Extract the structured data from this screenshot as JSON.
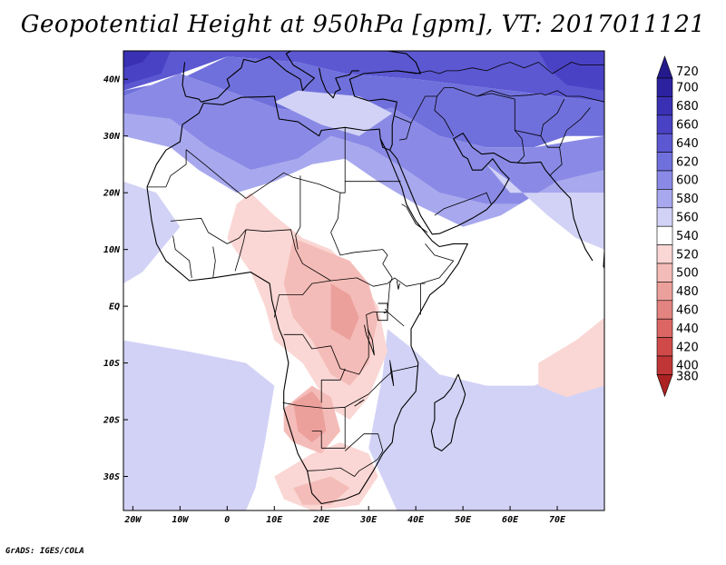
{
  "title": "Geopotential Height at 950hPa [gpm], VT: 2017011121",
  "footer": "GrADS: IGES/COLA",
  "map": {
    "lon_range": [
      -22,
      80
    ],
    "lat_range": [
      -36,
      45
    ],
    "x_ticks": [
      {
        "value": -20,
        "label": "20W"
      },
      {
        "value": -10,
        "label": "10W"
      },
      {
        "value": 0,
        "label": "0"
      },
      {
        "value": 10,
        "label": "10E"
      },
      {
        "value": 20,
        "label": "20E"
      },
      {
        "value": 30,
        "label": "30E"
      },
      {
        "value": 40,
        "label": "40E"
      },
      {
        "value": 50,
        "label": "50E"
      },
      {
        "value": 60,
        "label": "60E"
      },
      {
        "value": 70,
        "label": "70E"
      }
    ],
    "y_ticks": [
      {
        "value": 40,
        "label": "40N"
      },
      {
        "value": 30,
        "label": "30N"
      },
      {
        "value": 20,
        "label": "20N"
      },
      {
        "value": 10,
        "label": "10N"
      },
      {
        "value": 0,
        "label": "EQ"
      },
      {
        "value": -10,
        "label": "10S"
      },
      {
        "value": -20,
        "label": "20S"
      },
      {
        "value": -30,
        "label": "30S"
      }
    ]
  },
  "colorbar": {
    "levels": [
      {
        "label": "720",
        "color": "#241a8c"
      },
      {
        "label": "700",
        "color": "#2c22a0"
      },
      {
        "label": "680",
        "color": "#3a30b4"
      },
      {
        "label": "660",
        "color": "#4a42c4"
      },
      {
        "label": "640",
        "color": "#5c58d2"
      },
      {
        "label": "620",
        "color": "#7070dc"
      },
      {
        "label": "600",
        "color": "#8a8ae6"
      },
      {
        "label": "580",
        "color": "#a8a8ee"
      },
      {
        "label": "560",
        "color": "#d2d2f6"
      },
      {
        "label": "540",
        "color": "#ffffff"
      },
      {
        "label": "520",
        "color": "#fad7d4"
      },
      {
        "label": "500",
        "color": "#f4bcb8"
      },
      {
        "label": "480",
        "color": "#eca09c"
      },
      {
        "label": "460",
        "color": "#e48480"
      },
      {
        "label": "440",
        "color": "#dc6664"
      },
      {
        "label": "420",
        "color": "#d04a4a"
      },
      {
        "label": "400",
        "color": "#c03636"
      },
      {
        "label": "380",
        "color": "#ac2222"
      }
    ]
  },
  "field_regions": [
    {
      "level": "640",
      "polys": [
        [
          [
            -22,
            45
          ],
          [
            80,
            45
          ],
          [
            80,
            36
          ],
          [
            60,
            38
          ],
          [
            40,
            40
          ],
          [
            25,
            41
          ],
          [
            15,
            43
          ],
          [
            0,
            44
          ],
          [
            -10,
            41
          ],
          [
            -22,
            38
          ]
        ]
      ]
    },
    {
      "level": "660",
      "polys": [
        [
          [
            -22,
            45
          ],
          [
            -12,
            45
          ],
          [
            -14,
            41
          ],
          [
            -22,
            39
          ]
        ],
        [
          [
            66,
            45
          ],
          [
            80,
            45
          ],
          [
            80,
            38
          ],
          [
            72,
            39
          ],
          [
            68,
            42
          ]
        ]
      ]
    },
    {
      "level": "680",
      "polys": [
        [
          [
            -22,
            45
          ],
          [
            -16,
            45
          ],
          [
            -18,
            43
          ],
          [
            -22,
            42
          ]
        ]
      ]
    },
    {
      "level": "620",
      "polys": [
        [
          [
            -22,
            37
          ],
          [
            -10,
            41
          ],
          [
            0,
            38
          ],
          [
            10,
            35
          ],
          [
            25,
            33
          ],
          [
            35,
            35
          ],
          [
            45,
            30
          ],
          [
            55,
            28
          ],
          [
            65,
            28
          ],
          [
            72,
            30
          ],
          [
            80,
            30
          ],
          [
            80,
            36
          ],
          [
            60,
            38
          ],
          [
            40,
            40
          ],
          [
            25,
            41
          ],
          [
            15,
            43
          ],
          [
            0,
            44
          ],
          [
            -10,
            40
          ],
          [
            -22,
            38
          ]
        ],
        [
          [
            -22,
            -24
          ],
          [
            -10,
            -26
          ],
          [
            -5,
            -31
          ],
          [
            -12,
            -36
          ],
          [
            -22,
            -36
          ]
        ],
        [
          [
            50,
            -26
          ],
          [
            60,
            -26
          ],
          [
            68,
            -30
          ],
          [
            64,
            -36
          ],
          [
            50,
            -36
          ],
          [
            45,
            -31
          ]
        ]
      ]
    },
    {
      "level": "600",
      "polys": [
        [
          [
            -22,
            34
          ],
          [
            -12,
            33
          ],
          [
            -4,
            28
          ],
          [
            5,
            24
          ],
          [
            15,
            26
          ],
          [
            22,
            30
          ],
          [
            30,
            28
          ],
          [
            38,
            24
          ],
          [
            45,
            20
          ],
          [
            55,
            18
          ],
          [
            62,
            18
          ],
          [
            70,
            22
          ],
          [
            80,
            24
          ],
          [
            80,
            30
          ],
          [
            65,
            28
          ],
          [
            55,
            28
          ],
          [
            45,
            30
          ],
          [
            35,
            35
          ],
          [
            25,
            33
          ],
          [
            10,
            35
          ],
          [
            0,
            38
          ],
          [
            -10,
            41
          ],
          [
            -22,
            37
          ]
        ],
        [
          [
            -22,
            -20
          ],
          [
            -5,
            -22
          ],
          [
            2,
            -27
          ],
          [
            -4,
            -36
          ],
          [
            -22,
            -36
          ]
        ],
        [
          [
            45,
            -22
          ],
          [
            62,
            -22
          ],
          [
            72,
            -27
          ],
          [
            70,
            -36
          ],
          [
            40,
            -36
          ],
          [
            38,
            -30
          ]
        ]
      ]
    },
    {
      "level": "580",
      "polys": [
        [
          [
            -22,
            30
          ],
          [
            -12,
            28
          ],
          [
            -6,
            24
          ],
          [
            2,
            20
          ],
          [
            10,
            22
          ],
          [
            18,
            25
          ],
          [
            25,
            26
          ],
          [
            32,
            22
          ],
          [
            40,
            18
          ],
          [
            50,
            14
          ],
          [
            58,
            16
          ],
          [
            66,
            20
          ],
          [
            74,
            20
          ],
          [
            80,
            20
          ],
          [
            80,
            24
          ],
          [
            70,
            22
          ],
          [
            62,
            18
          ],
          [
            55,
            18
          ],
          [
            45,
            20
          ],
          [
            38,
            24
          ],
          [
            30,
            28
          ],
          [
            22,
            30
          ],
          [
            15,
            26
          ],
          [
            5,
            24
          ],
          [
            -4,
            28
          ],
          [
            -12,
            33
          ],
          [
            -22,
            34
          ]
        ],
        [
          [
            -22,
            -16
          ],
          [
            -8,
            -17
          ],
          [
            5,
            -20
          ],
          [
            6,
            -28
          ],
          [
            2,
            -36
          ],
          [
            -22,
            -36
          ]
        ],
        [
          [
            42,
            -18
          ],
          [
            58,
            -18
          ],
          [
            70,
            -22
          ],
          [
            80,
            -20
          ],
          [
            80,
            -36
          ],
          [
            40,
            -36
          ],
          [
            35,
            -28
          ]
        ]
      ]
    },
    {
      "level": "560",
      "polys": [
        [
          [
            -22,
            22
          ],
          [
            -15,
            20
          ],
          [
            -10,
            14
          ],
          [
            -18,
            6
          ],
          [
            -22,
            4
          ]
        ],
        [
          [
            -22,
            -6
          ],
          [
            -8,
            -8
          ],
          [
            4,
            -10
          ],
          [
            10,
            -14
          ],
          [
            8,
            -24
          ],
          [
            6,
            -32
          ],
          [
            4,
            -36
          ],
          [
            -22,
            -36
          ]
        ],
        [
          [
            34,
            -4
          ],
          [
            40,
            -8
          ],
          [
            45,
            -12
          ],
          [
            55,
            -14
          ],
          [
            65,
            -14
          ],
          [
            72,
            -12
          ],
          [
            80,
            -12
          ],
          [
            80,
            -36
          ],
          [
            36,
            -36
          ],
          [
            30,
            -25
          ],
          [
            33,
            -12
          ]
        ],
        [
          [
            55,
            25
          ],
          [
            60,
            22
          ],
          [
            68,
            16
          ],
          [
            74,
            12
          ],
          [
            80,
            10
          ],
          [
            80,
            20
          ],
          [
            70,
            20
          ],
          [
            60,
            20
          ]
        ],
        [
          [
            10,
            36
          ],
          [
            20,
            32
          ],
          [
            28,
            30
          ],
          [
            35,
            34
          ],
          [
            28,
            37
          ],
          [
            15,
            38
          ]
        ]
      ]
    },
    {
      "level": "520",
      "polys": [
        [
          [
            5,
            20
          ],
          [
            10,
            16
          ],
          [
            16,
            12
          ],
          [
            22,
            10
          ],
          [
            28,
            5
          ],
          [
            32,
            0
          ],
          [
            34,
            -8
          ],
          [
            30,
            -16
          ],
          [
            26,
            -20
          ],
          [
            22,
            -18
          ],
          [
            16,
            -10
          ],
          [
            10,
            -6
          ],
          [
            8,
            0
          ],
          [
            5,
            6
          ],
          [
            0,
            12
          ],
          [
            2,
            18
          ]
        ],
        [
          [
            66,
            -10
          ],
          [
            74,
            -6
          ],
          [
            80,
            -2
          ],
          [
            80,
            -14
          ],
          [
            72,
            -16
          ],
          [
            66,
            -14
          ]
        ],
        [
          [
            10,
            -30
          ],
          [
            18,
            -26
          ],
          [
            24,
            -24
          ],
          [
            30,
            -26
          ],
          [
            32,
            -30
          ],
          [
            28,
            -35
          ],
          [
            18,
            -36
          ],
          [
            12,
            -34
          ]
        ]
      ]
    },
    {
      "level": "500",
      "polys": [
        [
          [
            14,
            12
          ],
          [
            20,
            10
          ],
          [
            26,
            8
          ],
          [
            30,
            4
          ],
          [
            32,
            -2
          ],
          [
            30,
            -10
          ],
          [
            26,
            -14
          ],
          [
            22,
            -12
          ],
          [
            18,
            -6
          ],
          [
            14,
            -2
          ],
          [
            12,
            4
          ]
        ],
        [
          [
            12,
            -18
          ],
          [
            18,
            -14
          ],
          [
            22,
            -16
          ],
          [
            24,
            -22
          ],
          [
            20,
            -26
          ],
          [
            14,
            -24
          ],
          [
            12,
            -22
          ]
        ],
        [
          [
            14,
            -32
          ],
          [
            22,
            -30
          ],
          [
            26,
            -32
          ],
          [
            22,
            -35
          ],
          [
            16,
            -35
          ]
        ]
      ]
    },
    {
      "level": "480",
      "polys": [
        [
          [
            14,
            -17
          ],
          [
            18,
            -15
          ],
          [
            20,
            -17
          ],
          [
            21,
            -22
          ],
          [
            18,
            -24
          ],
          [
            15,
            -22
          ]
        ],
        [
          [
            22,
            4
          ],
          [
            26,
            2
          ],
          [
            28,
            -2
          ],
          [
            26,
            -6
          ],
          [
            22,
            -4
          ]
        ]
      ]
    }
  ]
}
